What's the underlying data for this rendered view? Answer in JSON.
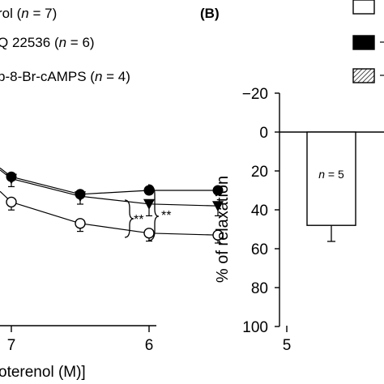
{
  "chart_data": [
    {
      "panel_label": "",
      "type": "line",
      "xlabel_fragment": "oterenol (M)]",
      "x_ticks": [
        "7",
        "6",
        "5"
      ],
      "x_tick_values": [
        -7,
        -6,
        -5
      ],
      "xlim": [
        -7.2,
        -5
      ],
      "ylim": [
        -20,
        100
      ],
      "legend": [
        {
          "prefix": "rol (",
          "italic": "n",
          "suffix": " = 7)",
          "marker": "open-circle"
        },
        {
          "prefix": "Q 22536 (",
          "italic": "n",
          "suffix": " = 6)",
          "marker": "triangle-down"
        },
        {
          "prefix": "p-8-Br-cAMPS (",
          "italic": "n",
          "suffix": " = 4)",
          "marker": "filled-circle"
        }
      ],
      "series": [
        {
          "marker": "open-circle",
          "x": [
            -7,
            -6.5,
            -6,
            -5.5
          ],
          "y": [
            36,
            47,
            52,
            53
          ],
          "err": [
            2,
            2,
            2,
            2
          ]
        },
        {
          "marker": "triangle-down",
          "x": [
            -7,
            -6.5,
            -6,
            -5.5
          ],
          "y": [
            24,
            33,
            37,
            38
          ],
          "err": [
            2,
            2,
            4,
            3
          ]
        },
        {
          "marker": "filled-circle",
          "x": [
            -7,
            -6.5,
            -6,
            -5.5
          ],
          "y": [
            23,
            32,
            30,
            30
          ],
          "err": [
            0,
            0,
            0,
            0
          ]
        }
      ],
      "significance": [
        "**",
        "**"
      ]
    },
    {
      "panel_label": "(B)",
      "type": "bar",
      "ylabel": "% of relaxation",
      "y_ticks": [
        "−20",
        "0",
        "20",
        "40",
        "60",
        "80",
        "100"
      ],
      "y_tick_values": [
        -20,
        0,
        20,
        40,
        60,
        80,
        100
      ],
      "ylim": [
        -20,
        100
      ],
      "inverted": true,
      "bars": [
        {
          "value": 48,
          "err": 7,
          "label_italic": "n",
          "label_rest": " = 5",
          "fill": "#ffffff"
        }
      ],
      "legend": [
        {
          "swatch": "open"
        },
        {
          "swatch": "filled"
        },
        {
          "swatch": "hatched"
        }
      ]
    }
  ]
}
